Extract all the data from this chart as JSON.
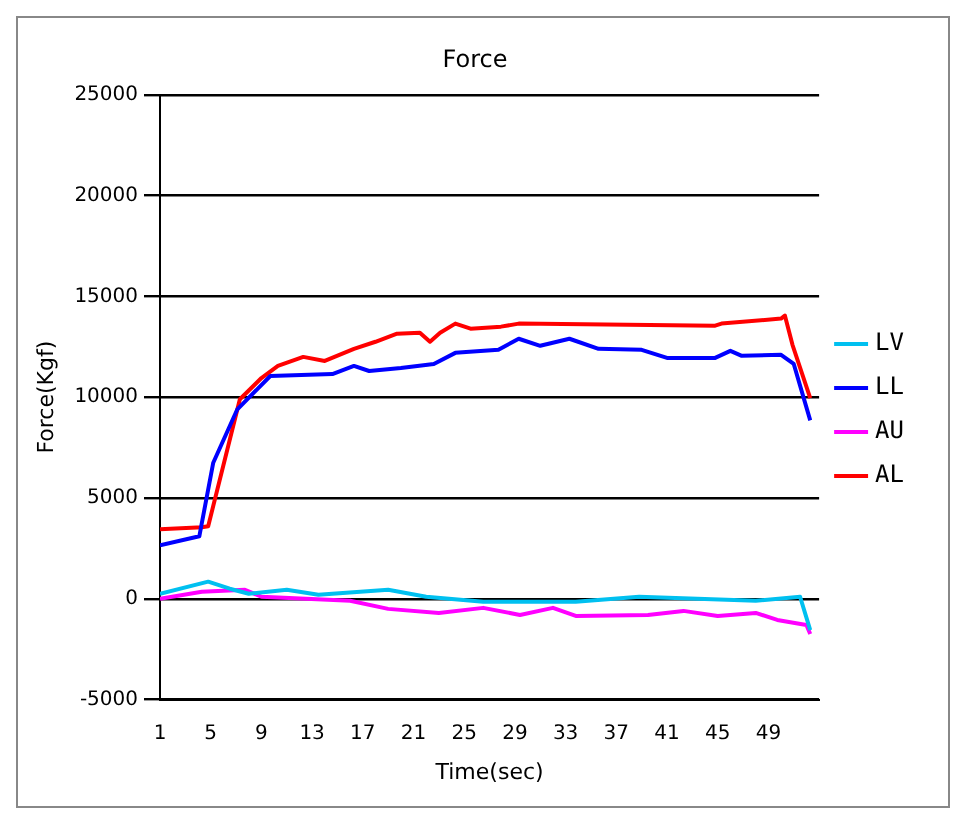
{
  "chart_data": {
    "type": "line",
    "title": "Force",
    "xlabel": "Time(sec)",
    "ylabel": "Force(Kgf)",
    "xlim": [
      1,
      53
    ],
    "xticks": [
      1,
      5,
      9,
      13,
      17,
      21,
      25,
      29,
      33,
      37,
      41,
      45,
      49
    ],
    "ylim": [
      -5000,
      25000
    ],
    "yticks": [
      -5000,
      0,
      5000,
      10000,
      15000,
      20000,
      25000
    ],
    "grid": "y",
    "legend": "right",
    "marker": "none",
    "line_style": "solid",
    "series": [
      {
        "name": "LV",
        "color": "#00c0f0",
        "x": [
          1,
          4.8,
          6.5,
          8,
          11,
          13.5,
          19,
          22,
          26.5,
          33.8,
          38.8,
          48,
          51.5,
          52.3
        ],
        "values": [
          250,
          850,
          500,
          250,
          450,
          200,
          450,
          100,
          -150,
          -150,
          100,
          -100,
          100,
          -1550
        ]
      },
      {
        "name": "LL",
        "color": "#0000ff",
        "x": [
          1,
          4.1,
          5.2,
          7.1,
          9.7,
          14.6,
          16.3,
          17.5,
          20,
          22.6,
          24.3,
          27.7,
          29.3,
          31,
          33.3,
          35.6,
          39,
          41,
          44.8,
          46,
          46.9,
          50,
          51,
          52.3
        ],
        "values": [
          2650,
          3100,
          6750,
          9400,
          11050,
          11150,
          11550,
          11300,
          11450,
          11650,
          12200,
          12350,
          12900,
          12550,
          12900,
          12400,
          12350,
          11950,
          11950,
          12300,
          12050,
          12100,
          11650,
          8850
        ]
      },
      {
        "name": "AU",
        "color": "#ff00ff",
        "x": [
          1,
          4.3,
          7.7,
          9,
          16,
          19,
          23,
          26.5,
          29.4,
          32,
          33.8,
          39.5,
          42.3,
          45,
          48,
          49.7,
          52,
          52.3
        ],
        "values": [
          0,
          350,
          450,
          100,
          -100,
          -500,
          -700,
          -450,
          -800,
          -450,
          -850,
          -800,
          -600,
          -850,
          -700,
          -1050,
          -1300,
          -1750
        ]
      },
      {
        "name": "AL",
        "color": "#ff0000",
        "x": [
          1,
          4.3,
          4.8,
          7.3,
          9,
          10.3,
          12.3,
          14,
          16.3,
          18,
          19.7,
          21.5,
          22.3,
          23.1,
          24.3,
          25.5,
          27.9,
          29.3,
          44.8,
          45.3,
          50,
          50.3,
          50.9,
          52.3
        ],
        "values": [
          3450,
          3550,
          3600,
          9900,
          10950,
          11550,
          12000,
          11800,
          12400,
          12750,
          13150,
          13200,
          12750,
          13200,
          13650,
          13400,
          13500,
          13650,
          13550,
          13650,
          13900,
          14050,
          12600,
          9950
        ]
      }
    ]
  }
}
